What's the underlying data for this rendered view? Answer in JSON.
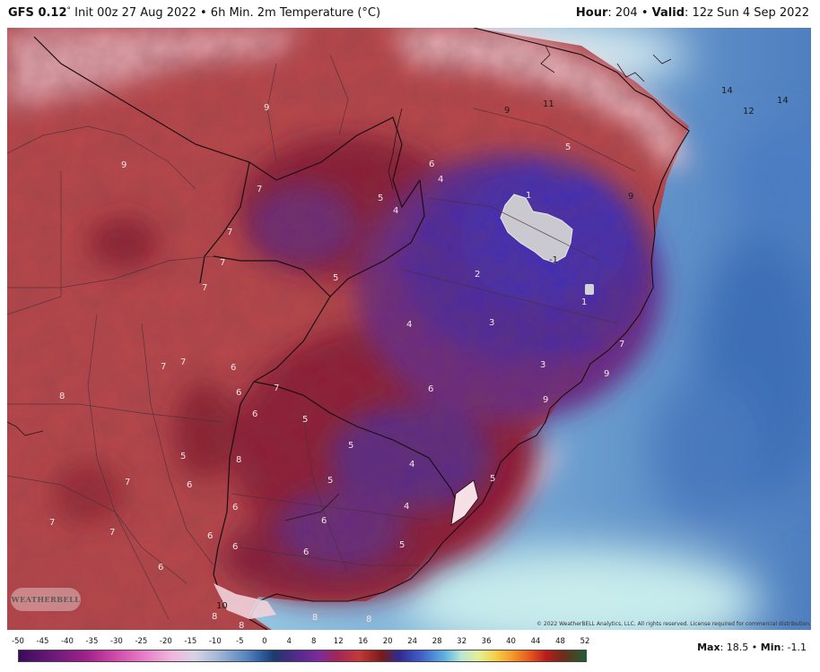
{
  "header": {
    "model": "GFS 0.12",
    "deg_symbol": "°",
    "init": "Init 00z 27 Aug 2022",
    "bullet": "•",
    "field": "6h Min. 2m Temperature (°C)",
    "hour_label": "Hour",
    "hour_value": ": 204",
    "valid_label": "Valid",
    "valid_value": ": 12z Sun 4 Sep 2022"
  },
  "map": {
    "labels_light": [
      {
        "text": "9"
      },
      {
        "text": "9"
      },
      {
        "text": "7"
      },
      {
        "text": "7"
      },
      {
        "text": "7"
      },
      {
        "text": "7"
      },
      {
        "text": "5"
      },
      {
        "text": "5"
      },
      {
        "text": "4"
      },
      {
        "text": "6"
      },
      {
        "text": "4"
      },
      {
        "text": "5"
      },
      {
        "text": "1"
      },
      {
        "text": "2"
      },
      {
        "text": "1"
      },
      {
        "text": "4"
      },
      {
        "text": "3"
      },
      {
        "text": "3"
      },
      {
        "text": "6"
      },
      {
        "text": "7"
      },
      {
        "text": "7"
      },
      {
        "text": "6"
      },
      {
        "text": "6"
      },
      {
        "text": "7"
      },
      {
        "text": "6"
      },
      {
        "text": "8"
      },
      {
        "text": "8"
      },
      {
        "text": "7"
      },
      {
        "text": "6"
      },
      {
        "text": "5"
      },
      {
        "text": "5"
      },
      {
        "text": "5"
      },
      {
        "text": "4"
      },
      {
        "text": "4"
      },
      {
        "text": "5"
      },
      {
        "text": "6"
      },
      {
        "text": "6"
      },
      {
        "text": "6"
      },
      {
        "text": "7"
      },
      {
        "text": "6"
      },
      {
        "text": "7"
      },
      {
        "text": "6"
      },
      {
        "text": "9"
      },
      {
        "text": "9"
      },
      {
        "text": "5"
      },
      {
        "text": "6"
      },
      {
        "text": "5"
      },
      {
        "text": "8"
      },
      {
        "text": "8"
      },
      {
        "text": "8"
      },
      {
        "text": "8"
      },
      {
        "text": "7"
      }
    ],
    "labels_dark": [
      {
        "text": "9"
      },
      {
        "text": "11"
      },
      {
        "text": "14"
      },
      {
        "text": "12"
      },
      {
        "text": "14"
      },
      {
        "text": "-1"
      },
      {
        "text": "9"
      },
      {
        "text": "10"
      }
    ]
  },
  "copyright": "© 2022 WeatherBELL Analytics, LLC. All rights reserved. License required for commercial distribution.",
  "logo_text": "WEATHERBELL",
  "colorbar": {
    "ticks": [
      "-50",
      "-45",
      "-40",
      "-35",
      "-30",
      "-25",
      "-20",
      "-15",
      "-10",
      "-5",
      "0",
      "4",
      "8",
      "12",
      "16",
      "20",
      "24",
      "28",
      "32",
      "36",
      "40",
      "44",
      "48",
      "52"
    ]
  },
  "stats": {
    "max_label": "Max",
    "max_value": ": 18.5",
    "sep": "•",
    "min_label": "Min",
    "min_value": ": -1.1"
  },
  "colors": {
    "warm_red": "#b83a3e",
    "deep_red": "#8a1a2a",
    "purple": "#5a2a8a",
    "cold_blue": "#4a2fb0",
    "ocean_blue": "#5b8fca",
    "light_cyan": "#b8e8ea",
    "pink": "#f1c7cf"
  }
}
